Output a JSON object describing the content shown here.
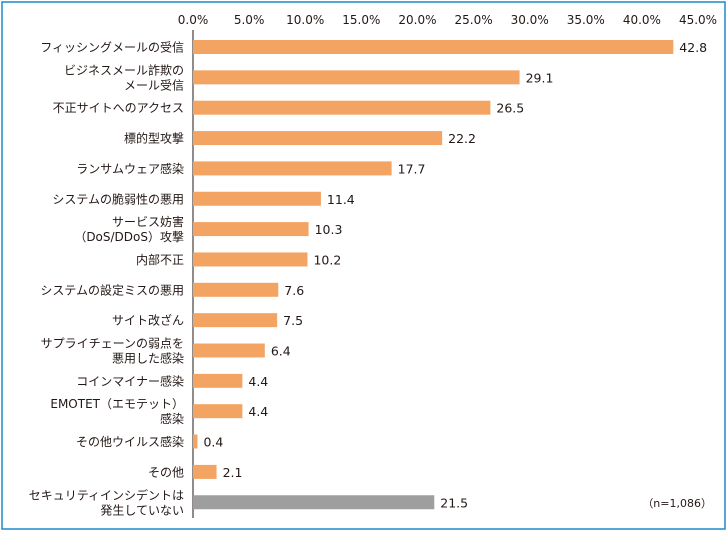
{
  "chart_data": {
    "type": "bar",
    "orientation": "horizontal",
    "xlim": [
      0,
      45
    ],
    "x_ticks": [
      "0.0%",
      "5.0%",
      "10.0%",
      "15.0%",
      "20.0%",
      "25.0%",
      "30.0%",
      "35.0%",
      "40.0%",
      "45.0%"
    ],
    "categories": [
      [
        "フィッシングメールの受信"
      ],
      [
        "ビジネスメール詐欺の",
        "メール受信"
      ],
      [
        "不正サイトへのアクセス"
      ],
      [
        "標的型攻撃"
      ],
      [
        "ランサムウェア感染"
      ],
      [
        "システムの脆弱性の悪用"
      ],
      [
        "サービス妨害",
        "（DoS/DDoS）攻撃"
      ],
      [
        "内部不正"
      ],
      [
        "システムの設定ミスの悪用"
      ],
      [
        "サイト改ざん"
      ],
      [
        "サプライチェーンの弱点を",
        "悪用した感染"
      ],
      [
        "コインマイナー感染"
      ],
      [
        "EMOTET（エモテット）",
        "感染"
      ],
      [
        "その他ウイルス感染"
      ],
      [
        "その他"
      ],
      [
        "セキュリティインシデントは",
        "発生していない"
      ]
    ],
    "values": [
      42.8,
      29.1,
      26.5,
      22.2,
      17.7,
      11.4,
      10.3,
      10.2,
      7.6,
      7.5,
      6.4,
      4.4,
      4.4,
      0.4,
      2.1,
      21.5
    ],
    "value_labels": [
      "42.8",
      "29.1",
      "26.5",
      "22.2",
      "17.7",
      "11.4",
      "10.3",
      "10.2",
      "7.6",
      "7.5",
      "6.4",
      "4.4",
      "4.4",
      "0.4",
      "2.1",
      "21.5"
    ],
    "bar_colors": [
      "#f4a462",
      "#f4a462",
      "#f4a462",
      "#f4a462",
      "#f4a462",
      "#f4a462",
      "#f4a462",
      "#f4a462",
      "#f4a462",
      "#f4a462",
      "#f4a462",
      "#f4a462",
      "#f4a462",
      "#f4a462",
      "#f4a462",
      "#9e9e9e"
    ],
    "grid": false,
    "annotation": "（n=1,086）",
    "frame_color": "#1d8acb"
  }
}
